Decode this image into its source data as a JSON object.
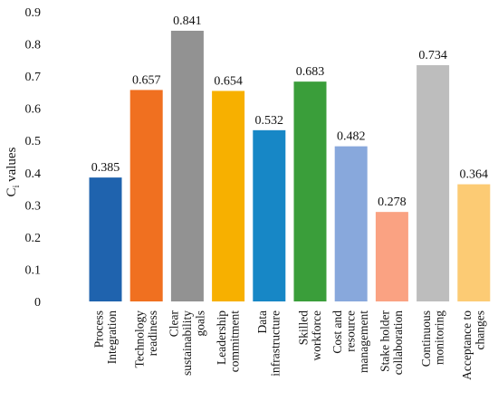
{
  "chart_data": {
    "type": "bar",
    "ylabel_main": "C",
    "ylabel_sub": "i",
    "ylabel_rest": " values",
    "xlabel": "",
    "ylim": [
      0,
      0.9
    ],
    "yticks": [
      "0",
      "0.1",
      "0.2",
      "0.3",
      "0.4",
      "0.5",
      "0.6",
      "0.7",
      "0.8",
      "0.9"
    ],
    "grid": false,
    "legend": "none",
    "categories": [
      {
        "lines": [
          "Process",
          "Integration"
        ],
        "value": 0.385,
        "label": "0.385",
        "color": "#1F63AE"
      },
      {
        "lines": [
          "Technology",
          "readiness"
        ],
        "value": 0.657,
        "label": "0.657",
        "color": "#F07020"
      },
      {
        "lines": [
          "Clear",
          "sustainability",
          "goals"
        ],
        "value": 0.841,
        "label": "0.841",
        "color": "#929292"
      },
      {
        "lines": [
          "Leadership",
          "commitment"
        ],
        "value": 0.654,
        "label": "0.654",
        "color": "#F7B000"
      },
      {
        "lines": [
          "Data",
          "infrastructure"
        ],
        "value": 0.532,
        "label": "0.532",
        "color": "#1787C6"
      },
      {
        "lines": [
          "Skilled",
          "workforce"
        ],
        "value": 0.683,
        "label": "0.683",
        "color": "#3A9E3A"
      },
      {
        "lines": [
          "Cost and",
          "resource",
          "management"
        ],
        "value": 0.482,
        "label": "0.482",
        "color": "#88A8DC"
      },
      {
        "lines": [
          "Stake holder",
          "collaboration"
        ],
        "value": 0.278,
        "label": "0.278",
        "color": "#FAA282"
      },
      {
        "lines": [
          "Continuous",
          "monitoring"
        ],
        "value": 0.734,
        "label": "0.734",
        "color": "#BDBDBD"
      },
      {
        "lines": [
          "Acceptance to",
          "changes"
        ],
        "value": 0.364,
        "label": "0.364",
        "color": "#FCCB74"
      }
    ]
  }
}
